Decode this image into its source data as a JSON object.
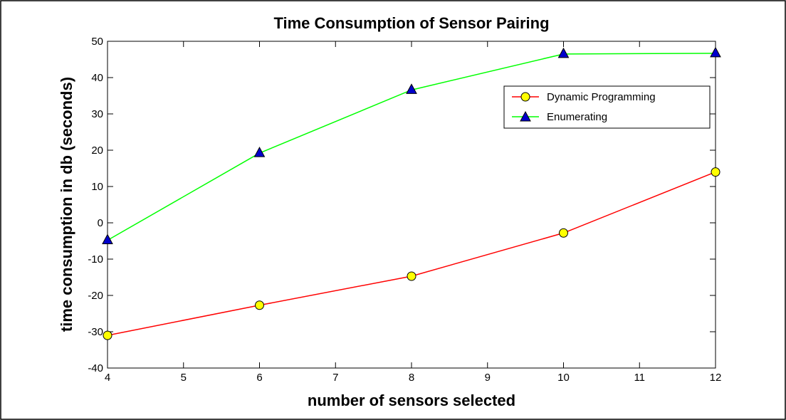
{
  "chart_data": {
    "type": "line",
    "title": "Time Consumption of Sensor Pairing",
    "xlabel": "number of sensors selected",
    "ylabel": "time consumption in db (seconds)",
    "xlim": [
      4,
      12
    ],
    "ylim": [
      -40,
      50
    ],
    "x_ticks": [
      4,
      5,
      6,
      7,
      8,
      9,
      10,
      11,
      12
    ],
    "y_ticks": [
      -40,
      -30,
      -20,
      -10,
      0,
      10,
      20,
      30,
      40,
      50
    ],
    "grid": false,
    "legend_position": "top-right",
    "series": [
      {
        "name": "Dynamic Programming",
        "x": [
          4,
          6,
          8,
          10,
          12
        ],
        "y": [
          -31,
          -22.7,
          -14.7,
          -2.8,
          14
        ],
        "line_color": "#ff0000",
        "marker": "circle",
        "marker_color": "#ffff00"
      },
      {
        "name": "Enumerating",
        "x": [
          4,
          6,
          8,
          10,
          12
        ],
        "y": [
          -4.8,
          19.2,
          36.6,
          46.5,
          46.7
        ],
        "line_color": "#00ff00",
        "marker": "triangle",
        "marker_color": "#0000cc"
      }
    ]
  }
}
